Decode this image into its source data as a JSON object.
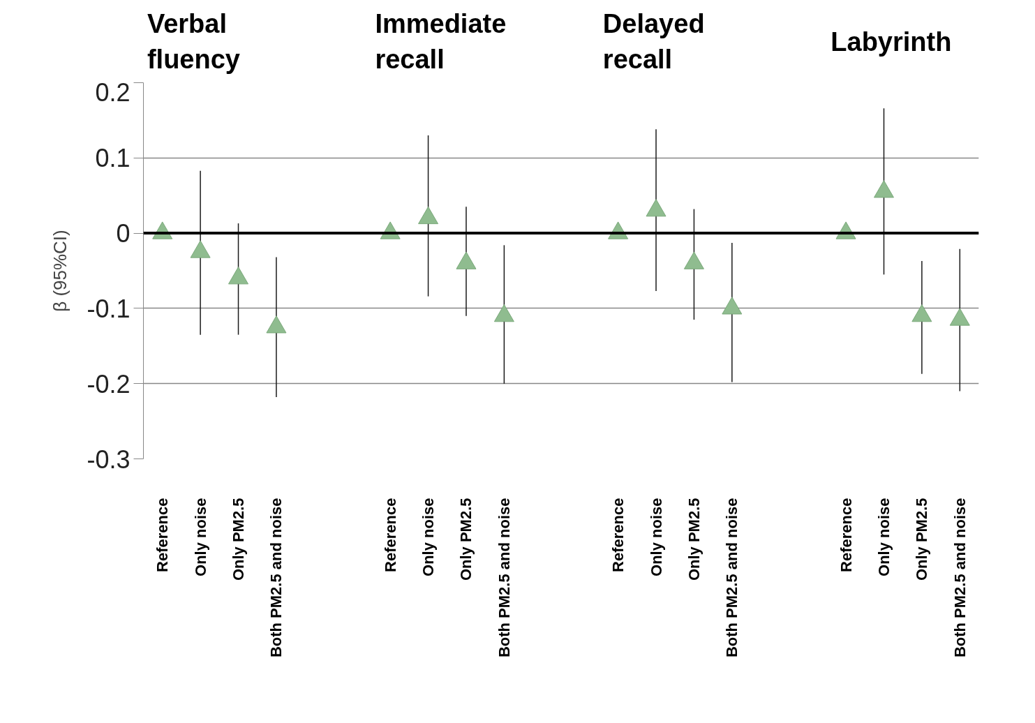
{
  "chart_data": {
    "type": "scatter",
    "ylabel": "β (95%CI)",
    "categories": [
      "Reference",
      "Only noise",
      "Only PM2.5",
      "Both PM2.5 and noise",
      null,
      null,
      "Reference",
      "Only noise",
      "Only PM2.5",
      "Both PM2.5 and noise",
      null,
      null,
      "Reference",
      "Only noise",
      "Only PM2.5",
      "Both PM2.5 and noise",
      null,
      null,
      "Reference",
      "Only noise",
      "Only PM2.5",
      "Both PM2.5 and noise"
    ],
    "series": [
      {
        "color": "#8fbc8f",
        "values": [
          0,
          -0.025,
          -0.06,
          -0.125,
          null,
          null,
          0,
          0.02,
          -0.04,
          -0.11,
          null,
          null,
          0,
          0.03,
          -0.04,
          -0.1,
          null,
          null,
          0,
          0.055,
          -0.11,
          -0.115
        ],
        "errors": [
          null,
          [
            -0.135,
            0.083
          ],
          [
            -0.135,
            0.013
          ],
          [
            -0.218,
            -0.032
          ],
          null,
          null,
          null,
          [
            -0.084,
            0.13
          ],
          [
            -0.11,
            0.035
          ],
          [
            -0.2,
            -0.016
          ],
          null,
          null,
          null,
          [
            -0.077,
            0.138
          ],
          [
            -0.115,
            0.032
          ],
          [
            -0.198,
            -0.013
          ],
          null,
          null,
          null,
          [
            -0.055,
            0.166
          ],
          [
            -0.187,
            -0.037
          ],
          [
            -0.21,
            -0.021
          ]
        ]
      }
    ],
    "annotations": [
      "Verbal fluency",
      "Immediate recall",
      "Delayed recall",
      "Labyrinth"
    ],
    "ylim": [
      -0.3,
      0.2
    ],
    "yticks": [
      -0.3,
      -0.2,
      -0.1,
      0,
      0.1,
      0.2
    ],
    "ref_lines": [
      {
        "axis": "y",
        "value": 0,
        "color": "#000000"
      }
    ],
    "grid": "y",
    "marker": "triangle"
  }
}
